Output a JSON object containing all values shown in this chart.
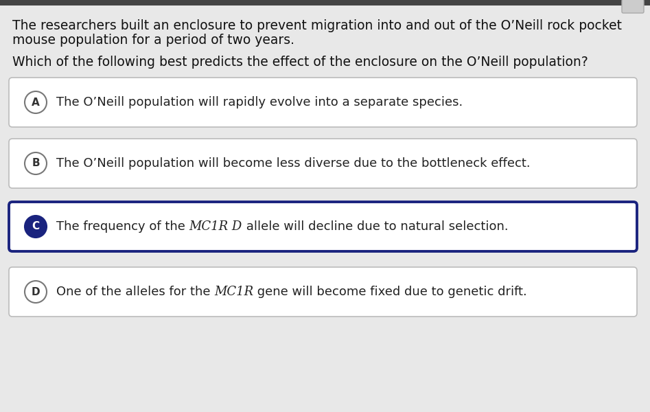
{
  "background_color": "#e8e8e8",
  "top_bar_color": "#444444",
  "top_bar_height": 8,
  "passage_text_line1": "The researchers built an enclosure to prevent migration into and out of the O’Neill rock pocket",
  "passage_text_line2": "mouse population for a period of two years.",
  "question_text": "Which of the following best predicts the effect of the enclosure on the O’Neill population?",
  "options": [
    {
      "letter": "A",
      "text": "The O’Neill population will rapidly evolve into a separate species.",
      "text_before_italic": null,
      "text_italic": null,
      "text_after_italic": null,
      "selected": false,
      "letter_filled": false
    },
    {
      "letter": "B",
      "text": "The O’Neill population will become less diverse due to the bottleneck effect.",
      "text_before_italic": null,
      "text_italic": null,
      "text_after_italic": null,
      "selected": false,
      "letter_filled": false
    },
    {
      "letter": "C",
      "text": null,
      "text_before_italic": "The frequency of the ",
      "text_italic": "MC1R D",
      "text_after_italic": " allele will decline due to natural selection.",
      "selected": true,
      "letter_filled": true
    },
    {
      "letter": "D",
      "text": null,
      "text_before_italic": "One of the alleles for the ",
      "text_italic": "MC1R",
      "text_after_italic": " gene will become fixed due to genetic drift.",
      "selected": false,
      "letter_filled": false
    }
  ],
  "passage_fontsize": 13.5,
  "question_fontsize": 13.5,
  "option_fontsize": 13,
  "selected_border_color": "#1a237e",
  "unselected_border_color": "#bbbbbb",
  "selected_fill_color": "#1a237e",
  "unselected_fill_color": "#ffffff",
  "box_bg_color": "#ffffff",
  "letter_text_color_filled": "#ffffff",
  "letter_text_color_empty": "#333333",
  "text_color": "#111111"
}
